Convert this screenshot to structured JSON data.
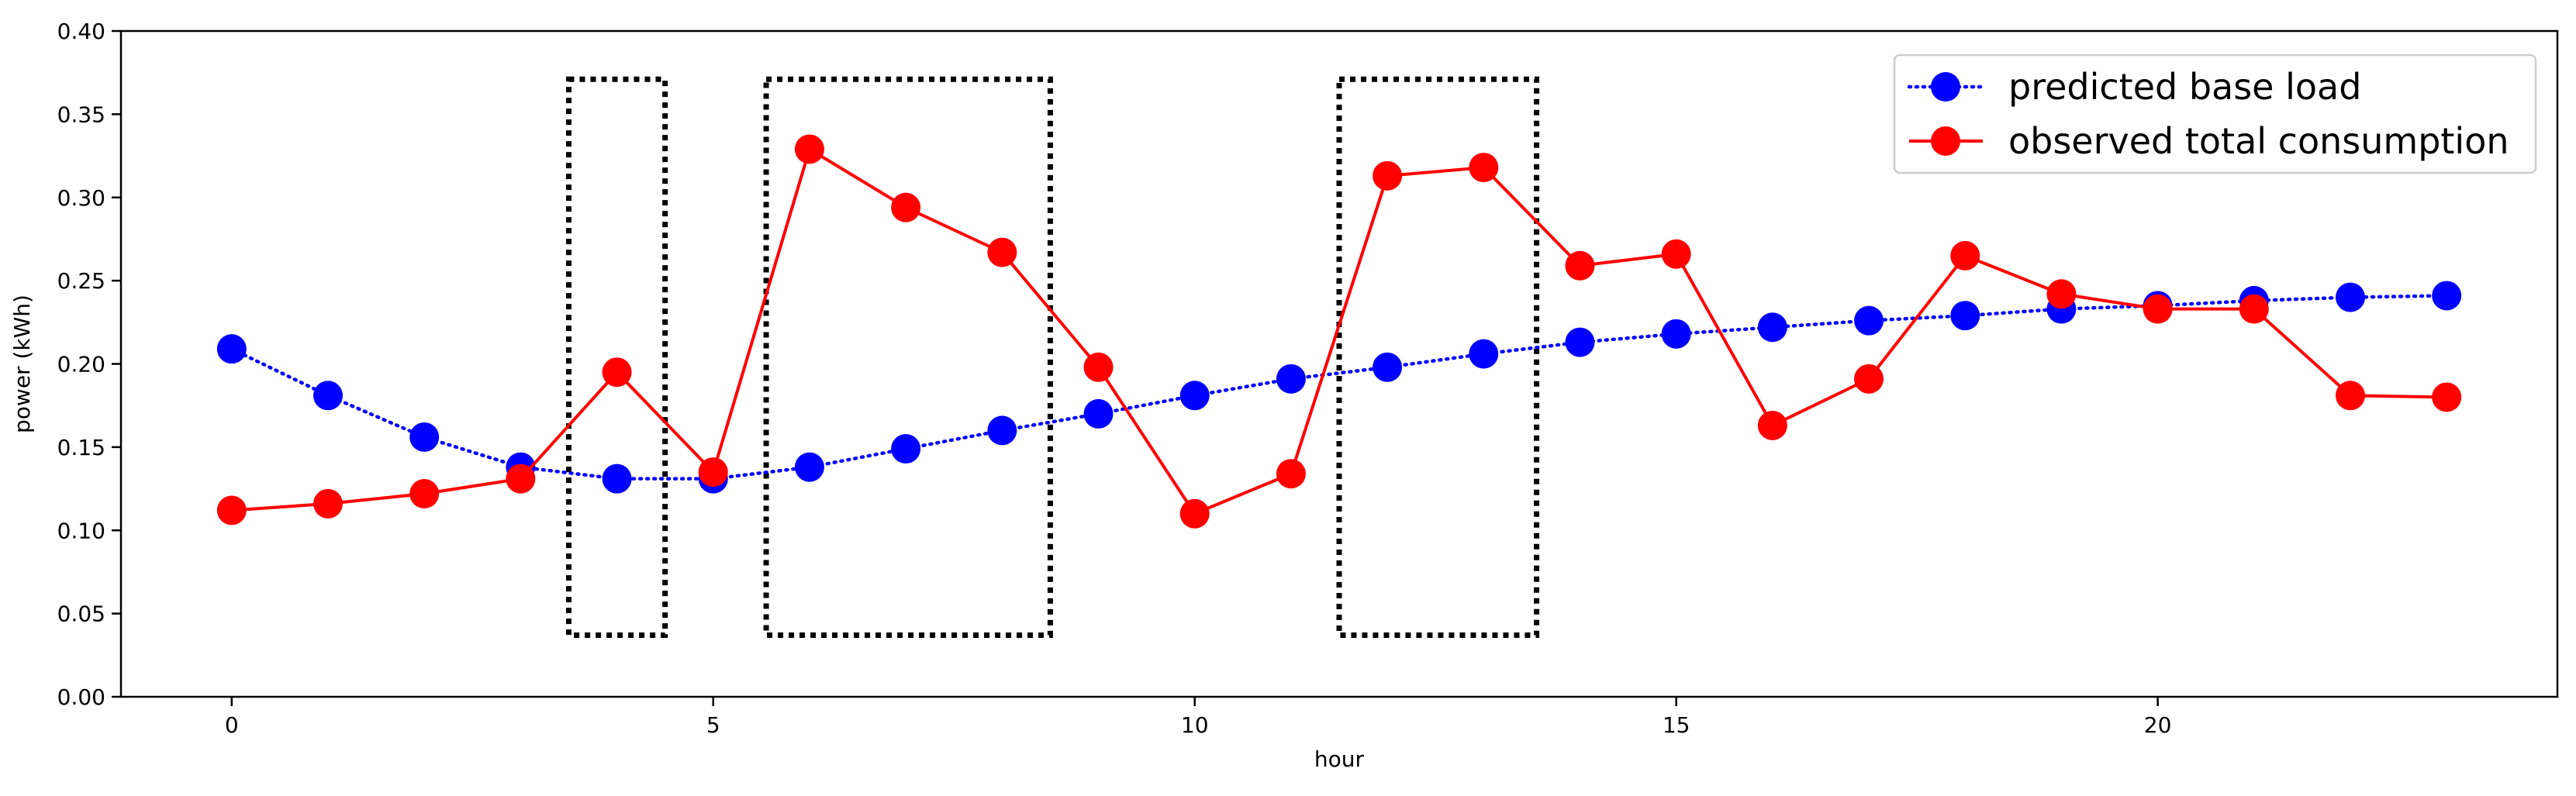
{
  "chart_data": {
    "type": "line",
    "title": "",
    "xlabel": "hour",
    "ylabel": "power (kWh)",
    "xlim": [
      -1.15,
      24.15
    ],
    "ylim": [
      0.0,
      0.4
    ],
    "xticks": [
      0,
      5,
      10,
      15,
      20
    ],
    "xtick_labels": [
      "0",
      "5",
      "10",
      "15",
      "20"
    ],
    "yticks": [
      0.0,
      0.05,
      0.1,
      0.15,
      0.2,
      0.25,
      0.3,
      0.35,
      0.4
    ],
    "ytick_labels": [
      "0.00",
      "0.05",
      "0.10",
      "0.15",
      "0.20",
      "0.25",
      "0.30",
      "0.35",
      "0.40"
    ],
    "grid": false,
    "legend_position": "top-right",
    "x": [
      0,
      1,
      2,
      3,
      4,
      5,
      6,
      7,
      8,
      9,
      10,
      11,
      12,
      13,
      14,
      15,
      16,
      17,
      18,
      19,
      20,
      21,
      22,
      23
    ],
    "series": [
      {
        "name": "predicted base load",
        "color": "#0000ff",
        "line_style": "dotted",
        "marker": "circle",
        "values": [
          0.209,
          0.181,
          0.156,
          0.138,
          0.131,
          0.131,
          0.138,
          0.149,
          0.16,
          0.17,
          0.181,
          0.191,
          0.198,
          0.206,
          0.213,
          0.218,
          0.222,
          0.226,
          0.229,
          0.233,
          0.235,
          0.238,
          0.24,
          0.241
        ]
      },
      {
        "name": "observed total consumption",
        "color": "#ff0000",
        "line_style": "solid",
        "marker": "circle",
        "values": [
          0.112,
          0.116,
          0.122,
          0.131,
          0.195,
          0.135,
          0.329,
          0.294,
          0.267,
          0.198,
          0.11,
          0.134,
          0.313,
          0.318,
          0.259,
          0.266,
          0.163,
          0.191,
          0.265,
          0.242,
          0.233,
          0.233,
          0.181,
          0.18
        ]
      }
    ],
    "annotations": [
      {
        "type": "dotted-box",
        "x_range": [
          3.5,
          4.5
        ],
        "y_range": [
          0.037,
          0.371
        ]
      },
      {
        "type": "dotted-box",
        "x_range": [
          5.55,
          8.5
        ],
        "y_range": [
          0.037,
          0.371
        ]
      },
      {
        "type": "dotted-box",
        "x_range": [
          11.5,
          13.55
        ],
        "y_range": [
          0.037,
          0.371
        ]
      }
    ]
  }
}
